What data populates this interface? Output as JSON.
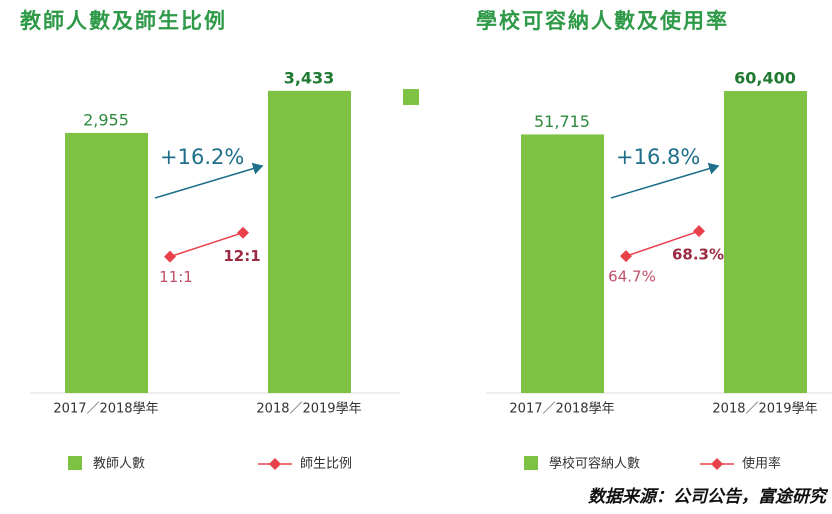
{
  "chart_data": [
    {
      "type": "combo",
      "title": "教師人數及師生比例",
      "categories": [
        "2017／2018學年",
        "2018／2019學年"
      ],
      "series": [
        {
          "name": "教師人數",
          "type": "bar",
          "color": "#7dc242",
          "values": [
            2955,
            3433
          ],
          "value_labels": [
            "2,955",
            "3,433"
          ]
        },
        {
          "name": "師生比例",
          "type": "line",
          "axis": "y2",
          "color": "#e8414b",
          "values": [
            11,
            12
          ],
          "value_labels": [
            "11:1",
            "12:1"
          ]
        }
      ],
      "annotation": "+16.2%",
      "ylim": [
        0,
        3670
      ],
      "y2lim": [
        5.3,
        18.8
      ]
    },
    {
      "type": "combo",
      "title": "學校可容納人數及使用率",
      "categories": [
        "2017／2018學年",
        "2018／2019學年"
      ],
      "series": [
        {
          "name": "學校可容納人數",
          "type": "bar",
          "color": "#7dc242",
          "values": [
            51715,
            60400
          ],
          "value_labels": [
            "51,715",
            "60,400"
          ]
        },
        {
          "name": "使用率",
          "type": "line",
          "axis": "y2",
          "color": "#e8414b",
          "values": [
            64.7,
            68.3
          ],
          "value_labels": [
            "64.7%",
            "68.3%"
          ]
        }
      ],
      "annotation": "+16.8%",
      "ylim": [
        0,
        64600
      ],
      "y2lim": [
        45,
        91.5
      ]
    }
  ],
  "source": "数据来源：公司公告，富途研究"
}
